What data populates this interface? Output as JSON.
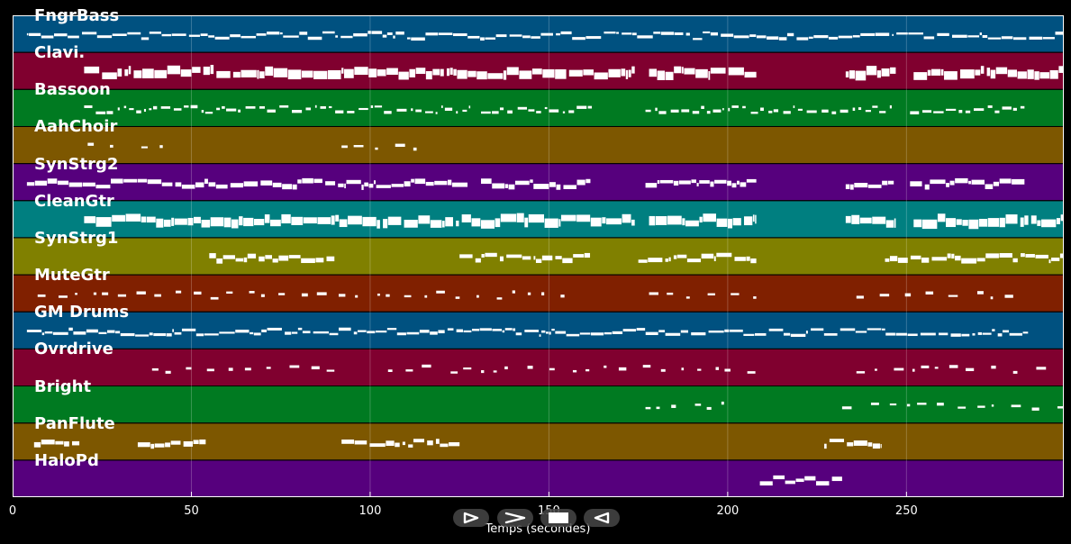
{
  "chart_data": {
    "type": "piano-roll",
    "xlabel": "Temps (secondes)",
    "xlim": [
      0,
      294
    ],
    "x_ticks": [
      "0",
      "50",
      "100",
      "150",
      "200",
      "250"
    ],
    "x_tick_values": [
      0,
      50,
      100,
      150,
      200,
      250
    ],
    "tracks": [
      {
        "name": "FngrBass",
        "color": "#005180",
        "segments": [
          [
            4,
            294
          ]
        ],
        "density": "dense",
        "thickness": "thin"
      },
      {
        "name": "Clavi.",
        "color": "#80002f",
        "segments": [
          [
            20,
            174
          ],
          [
            178,
            208
          ],
          [
            233,
            247
          ],
          [
            252,
            294
          ]
        ],
        "density": "dense",
        "thickness": "thick"
      },
      {
        "name": "Bassoon",
        "color": "#007a21",
        "segments": [
          [
            20,
            128
          ],
          [
            131,
            162
          ],
          [
            177,
            246
          ],
          [
            251,
            283
          ]
        ],
        "density": "medium",
        "thickness": "thin"
      },
      {
        "name": "AahChoir",
        "color": "#7d5700",
        "segments": [
          [
            21,
            31
          ],
          [
            36,
            42
          ],
          [
            92,
            103
          ],
          [
            107,
            113
          ]
        ],
        "density": "sparse",
        "thickness": "thin"
      },
      {
        "name": "SynStrg2",
        "color": "#56007d",
        "segments": [
          [
            4,
            128
          ],
          [
            131,
            162
          ],
          [
            177,
            208
          ],
          [
            233,
            247
          ],
          [
            251,
            283
          ]
        ],
        "density": "dense",
        "thickness": "medium"
      },
      {
        "name": "CleanGtr",
        "color": "#007f80",
        "segments": [
          [
            20,
            174
          ],
          [
            178,
            208
          ],
          [
            233,
            247
          ],
          [
            252,
            294
          ]
        ],
        "density": "dense",
        "thickness": "thick"
      },
      {
        "name": "SynStrg1",
        "color": "#808000",
        "segments": [
          [
            55,
            90
          ],
          [
            125,
            162
          ],
          [
            175,
            208
          ],
          [
            244,
            294
          ]
        ],
        "density": "dense",
        "thickness": "medium"
      },
      {
        "name": "MuteGtr",
        "color": "#802000",
        "segments": [
          [
            7,
            156
          ],
          [
            178,
            208
          ],
          [
            236,
            280
          ]
        ],
        "density": "sparse",
        "thickness": "thin"
      },
      {
        "name": "GM Drums",
        "color": "#005180",
        "segments": [
          [
            4,
            284
          ]
        ],
        "density": "dense",
        "thickness": "thin"
      },
      {
        "name": "Ovrdrive",
        "color": "#80002f",
        "segments": [
          [
            39,
            90
          ],
          [
            105,
            208
          ],
          [
            236,
            294
          ]
        ],
        "density": "sparse",
        "thickness": "thin"
      },
      {
        "name": "Bright",
        "color": "#007a21",
        "segments": [
          [
            177,
            200
          ],
          [
            232,
            294
          ]
        ],
        "density": "sparse",
        "thickness": "thin"
      },
      {
        "name": "PanFlute",
        "color": "#7d5700",
        "segments": [
          [
            6,
            19
          ],
          [
            35,
            54
          ],
          [
            92,
            125
          ],
          [
            227,
            243
          ]
        ],
        "density": "dense",
        "thickness": "medium"
      },
      {
        "name": "HaloPd",
        "color": "#56007d",
        "segments": [
          [
            209,
            232
          ]
        ],
        "density": "dense",
        "thickness": "medium"
      }
    ]
  },
  "controls": [
    {
      "name": "rewind-button",
      "icon": "rewind-icon"
    },
    {
      "name": "play-button",
      "icon": "play-icon"
    },
    {
      "name": "stop-button",
      "icon": "stop-icon"
    },
    {
      "name": "step-back-button",
      "icon": "step-back-icon"
    }
  ]
}
